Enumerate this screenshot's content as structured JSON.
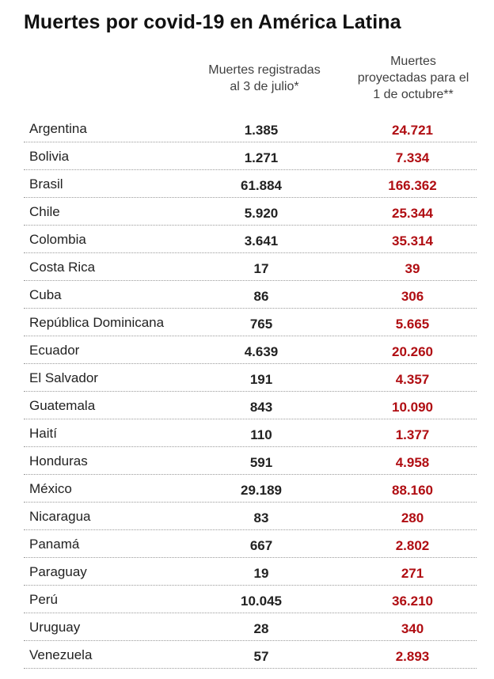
{
  "chart_data": {
    "type": "table",
    "title": "Muertes por covid-19 en América Latina",
    "columns": [
      {
        "key": "registered",
        "lines": [
          "Muertes registradas",
          "al 3 de julio*"
        ]
      },
      {
        "key": "projected",
        "lines": [
          "Muertes",
          "proyectadas para el",
          "1 de octubre**"
        ]
      }
    ],
    "rows": [
      {
        "country": "Argentina",
        "registered": "1.385",
        "projected": "24.721"
      },
      {
        "country": "Bolivia",
        "registered": "1.271",
        "projected": "7.334"
      },
      {
        "country": "Brasil",
        "registered": "61.884",
        "projected": "166.362"
      },
      {
        "country": "Chile",
        "registered": "5.920",
        "projected": "25.344"
      },
      {
        "country": "Colombia",
        "registered": "3.641",
        "projected": "35.314"
      },
      {
        "country": "Costa Rica",
        "registered": "17",
        "projected": "39"
      },
      {
        "country": "Cuba",
        "registered": "86",
        "projected": "306"
      },
      {
        "country": "República Dominicana",
        "registered": "765",
        "projected": "5.665"
      },
      {
        "country": "Ecuador",
        "registered": "4.639",
        "projected": "20.260"
      },
      {
        "country": "El Salvador",
        "registered": "191",
        "projected": "4.357"
      },
      {
        "country": "Guatemala",
        "registered": "843",
        "projected": "10.090"
      },
      {
        "country": "Haití",
        "registered": "110",
        "projected": "1.377"
      },
      {
        "country": "Honduras",
        "registered": "591",
        "projected": "4.958"
      },
      {
        "country": "México",
        "registered": "29.189",
        "projected": "88.160"
      },
      {
        "country": "Nicaragua",
        "registered": "83",
        "projected": "280"
      },
      {
        "country": "Panamá",
        "registered": "667",
        "projected": "2.802"
      },
      {
        "country": "Paraguay",
        "registered": "19",
        "projected": "271"
      },
      {
        "country": "Perú",
        "registered": "10.045",
        "projected": "36.210"
      },
      {
        "country": "Uruguay",
        "registered": "28",
        "projected": "340"
      },
      {
        "country": "Venezuela",
        "registered": "57",
        "projected": "2.893"
      }
    ],
    "colors": {
      "registered": "#222222",
      "projected": "#b00d12"
    }
  }
}
